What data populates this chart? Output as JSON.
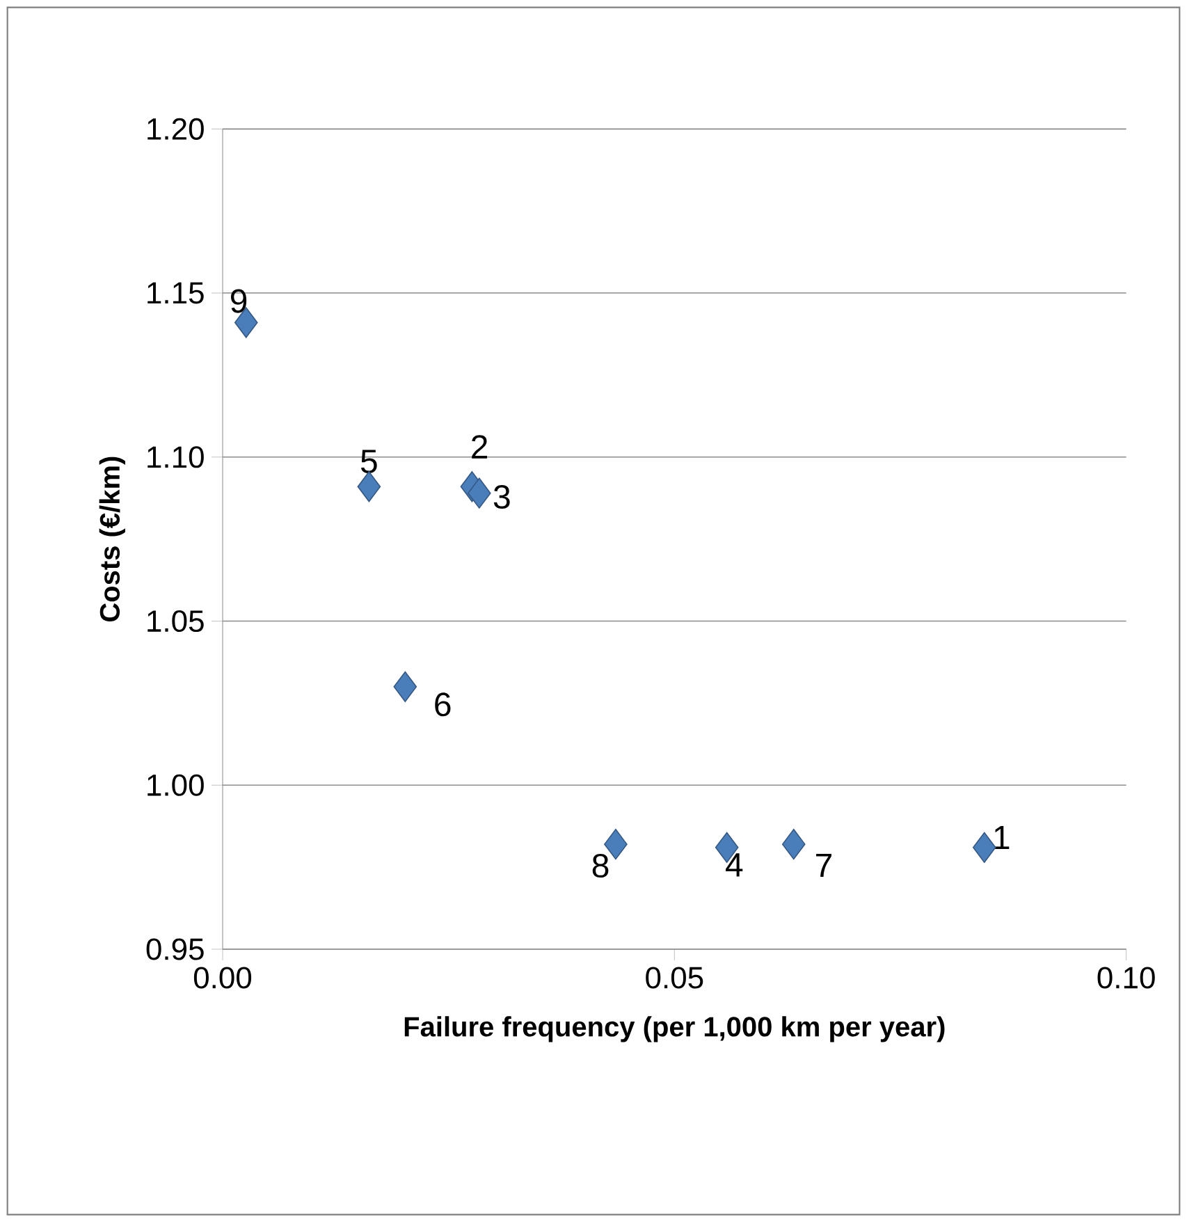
{
  "chart_data": {
    "type": "scatter",
    "xlabel": "Failure frequency (per 1,000 km per year)",
    "ylabel": "Costs (€/km)",
    "series": [
      {
        "color": "#4a7ebb",
        "x": [
          0.0843,
          0.0276,
          0.0284,
          0.0558,
          0.0162,
          0.0202,
          0.0632,
          0.0435,
          0.0026
        ],
        "values": [
          0.981,
          1.091,
          1.089,
          0.981,
          1.091,
          1.03,
          0.982,
          0.982,
          1.141
        ]
      }
    ],
    "annotations": [
      {
        "text": "1",
        "x": 0.0843,
        "y": 0.981
      },
      {
        "text": "2",
        "x": 0.0276,
        "y": 1.091
      },
      {
        "text": "3",
        "x": 0.0284,
        "y": 1.089
      },
      {
        "text": "4",
        "x": 0.0558,
        "y": 0.981
      },
      {
        "text": "5",
        "x": 0.0162,
        "y": 1.091
      },
      {
        "text": "6",
        "x": 0.0202,
        "y": 1.03
      },
      {
        "text": "7",
        "x": 0.0632,
        "y": 0.982
      },
      {
        "text": "8",
        "x": 0.0435,
        "y": 0.982
      },
      {
        "text": "9",
        "x": 0.0026,
        "y": 1.141
      }
    ],
    "xlim": [
      0,
      0.1
    ],
    "ylim": [
      0.95,
      1.2
    ],
    "xticks": [
      {
        "value": 0,
        "label": "0.00"
      },
      {
        "value": 0.05,
        "label": "0.05"
      },
      {
        "value": 0.1,
        "label": "0.10"
      }
    ],
    "yticks": [
      {
        "value": 0.95,
        "label": "0.95"
      },
      {
        "value": 1.0,
        "label": "1.00"
      },
      {
        "value": 1.05,
        "label": "1.05"
      },
      {
        "value": 1.1,
        "label": "1.10"
      },
      {
        "value": 1.15,
        "label": "1.15"
      },
      {
        "value": 1.2,
        "label": "1.20"
      }
    ],
    "grid": "y",
    "marker": "diamond"
  }
}
